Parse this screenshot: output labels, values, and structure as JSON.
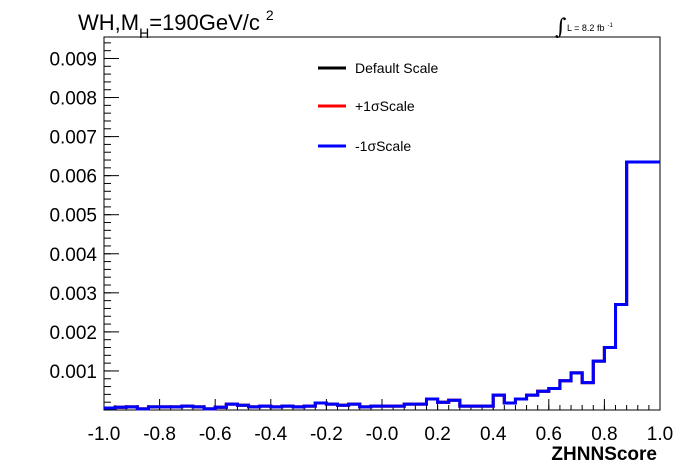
{
  "title": {
    "main": "WH,M",
    "subscript": "H",
    "rest": "=190GeV/c",
    "superscript": "2"
  },
  "luminosity": {
    "symbol": "∫",
    "text": "L = 8.2 fb",
    "superscript": "-1"
  },
  "chart_data": {
    "type": "line",
    "xlabel": "ZHNNScore",
    "ylabel": "",
    "xlim": [
      -1.0,
      1.0
    ],
    "ylim": [
      0,
      0.00955
    ],
    "x_ticks": [
      "-1.0",
      "-0.8",
      "-0.6",
      "-0.4",
      "-0.2",
      "-0.0",
      "0.2",
      "0.4",
      "0.6",
      "0.8",
      "1.0"
    ],
    "y_ticks": [
      "0.001",
      "0.002",
      "0.003",
      "0.004",
      "0.005",
      "0.006",
      "0.007",
      "0.008",
      "0.009"
    ],
    "grid": false,
    "legend_position": "top-center",
    "bin_edges": [
      -1.0,
      -0.96,
      -0.92,
      -0.88,
      -0.84,
      -0.8,
      -0.76,
      -0.72,
      -0.68,
      -0.64,
      -0.6,
      -0.56,
      -0.52,
      -0.48,
      -0.44,
      -0.4,
      -0.36,
      -0.32,
      -0.28,
      -0.24,
      -0.2,
      -0.16,
      -0.12,
      -0.08,
      -0.04,
      0.0,
      0.04,
      0.08,
      0.12,
      0.16,
      0.2,
      0.24,
      0.28,
      0.32,
      0.36,
      0.4,
      0.44,
      0.48,
      0.52,
      0.56,
      0.6,
      0.64,
      0.68,
      0.72,
      0.76,
      0.8,
      0.84,
      0.88,
      0.92,
      0.96,
      1.0
    ],
    "series": [
      {
        "name": "Default Scale",
        "color": "#000000",
        "values": [
          5e-05,
          7e-05,
          8e-05,
          3e-05,
          8e-05,
          8e-05,
          8e-05,
          0.0001,
          8e-05,
          3e-05,
          7e-05,
          0.00015,
          0.00012,
          8e-05,
          0.0001,
          8e-05,
          0.0001,
          8e-05,
          0.0001,
          0.00018,
          0.00015,
          0.00012,
          0.00015,
          8e-05,
          0.0001,
          0.0001,
          0.0001,
          0.00015,
          0.00015,
          0.00028,
          0.0002,
          0.00025,
          0.0001,
          0.0001,
          0.0001,
          0.00038,
          0.00018,
          0.00028,
          0.00038,
          0.00048,
          0.00055,
          0.00075,
          0.00095,
          0.0007,
          0.00125,
          0.0016,
          0.0027,
          0.00635,
          0.00635,
          0.00635
        ]
      },
      {
        "name": "+1σScale",
        "color": "#ff0000",
        "values": [
          5e-05,
          7e-05,
          8e-05,
          3e-05,
          8e-05,
          8e-05,
          8e-05,
          0.0001,
          8e-05,
          3e-05,
          7e-05,
          0.00015,
          0.00012,
          8e-05,
          0.0001,
          8e-05,
          0.0001,
          8e-05,
          0.0001,
          0.00018,
          0.00015,
          0.00012,
          0.00015,
          8e-05,
          0.0001,
          0.0001,
          0.0001,
          0.00015,
          0.00015,
          0.00028,
          0.0002,
          0.00025,
          0.0001,
          0.0001,
          0.0001,
          0.00038,
          0.00018,
          0.00028,
          0.00038,
          0.00048,
          0.00055,
          0.00075,
          0.00095,
          0.0007,
          0.00125,
          0.0016,
          0.0027,
          0.00635,
          0.00635,
          0.00635
        ]
      },
      {
        "name": "-1σScale",
        "color": "#0000ff",
        "values": [
          5e-05,
          7e-05,
          8e-05,
          3e-05,
          8e-05,
          8e-05,
          8e-05,
          0.0001,
          8e-05,
          3e-05,
          7e-05,
          0.00015,
          0.00012,
          8e-05,
          0.0001,
          8e-05,
          0.0001,
          8e-05,
          0.0001,
          0.00018,
          0.00015,
          0.00012,
          0.00015,
          8e-05,
          0.0001,
          0.0001,
          0.0001,
          0.00015,
          0.00015,
          0.00028,
          0.0002,
          0.00025,
          0.0001,
          0.0001,
          0.0001,
          0.00038,
          0.00018,
          0.00028,
          0.00038,
          0.00048,
          0.00055,
          0.00075,
          0.00095,
          0.0007,
          0.00125,
          0.0016,
          0.0027,
          0.00635,
          0.00635,
          0.00635
        ]
      }
    ]
  }
}
